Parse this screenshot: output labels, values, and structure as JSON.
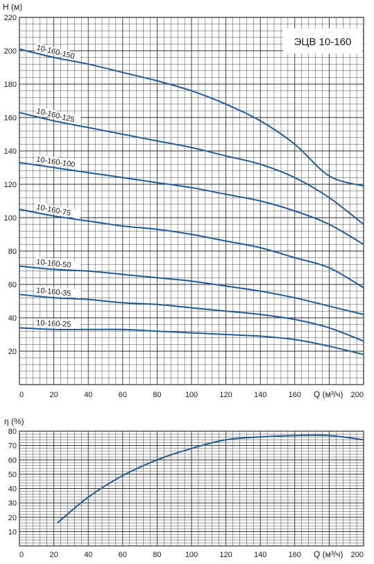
{
  "colors": {
    "curve": "#1f5a99",
    "grid": "#2b2b2b",
    "text": "#1a1a1a",
    "background": "#ffffff"
  },
  "chart_data": [
    {
      "type": "line",
      "title": "ЭЦВ 10-160",
      "xlabel": "Q (м³/ч)",
      "ylabel": "Н (м)",
      "xlim": [
        0,
        200
      ],
      "ylim": [
        0,
        220
      ],
      "x_ticks": [
        "0",
        "20",
        "40",
        "60",
        "80",
        "100",
        "120",
        "140",
        "160",
        "200"
      ],
      "y_ticks": [
        "20",
        "40",
        "60",
        "80",
        "100",
        "120",
        "140",
        "160",
        "180",
        "200",
        "220"
      ],
      "grid": true,
      "x": [
        0,
        20,
        40,
        60,
        80,
        100,
        120,
        140,
        160,
        180,
        200
      ],
      "series": [
        {
          "name": "10-160-150",
          "values": [
            201,
            196,
            192,
            187,
            182,
            176,
            168,
            158,
            144,
            125,
            119
          ]
        },
        {
          "name": "10-160-125",
          "values": [
            163,
            158,
            154,
            150,
            146,
            142,
            137,
            132,
            124,
            112,
            96
          ]
        },
        {
          "name": "10-160-100",
          "values": [
            133,
            130,
            127,
            124,
            121,
            118,
            114,
            110,
            104,
            96,
            84
          ]
        },
        {
          "name": "10-160-75",
          "values": [
            105,
            101,
            98,
            95,
            93,
            90,
            86,
            82,
            76,
            70,
            58
          ]
        },
        {
          "name": "10-160-50",
          "values": [
            71,
            69,
            68,
            66,
            64,
            62,
            59,
            56,
            52,
            47,
            42
          ]
        },
        {
          "name": "10-160-35",
          "values": [
            54,
            52,
            51,
            49,
            48,
            46,
            44,
            42,
            39,
            34,
            26
          ]
        },
        {
          "name": "10-160-25",
          "values": [
            34,
            33,
            33,
            33,
            32,
            31,
            30,
            29,
            27,
            23,
            18
          ]
        }
      ]
    },
    {
      "type": "line",
      "title": "",
      "xlabel": "Q (м³/ч)",
      "ylabel": "η (%)",
      "xlim": [
        0,
        200
      ],
      "ylim": [
        0,
        80
      ],
      "x_ticks": [
        "0",
        "20",
        "40",
        "60",
        "80",
        "100",
        "120",
        "140",
        "160",
        "200"
      ],
      "y_ticks": [
        "10",
        "20",
        "30",
        "40",
        "50",
        "60",
        "70",
        "80"
      ],
      "grid": true,
      "x": [
        22,
        40,
        60,
        80,
        100,
        120,
        140,
        160,
        180,
        200
      ],
      "series": [
        {
          "values": [
            16,
            34,
            49,
            60,
            68,
            74,
            76,
            77,
            77,
            74
          ]
        }
      ]
    }
  ]
}
